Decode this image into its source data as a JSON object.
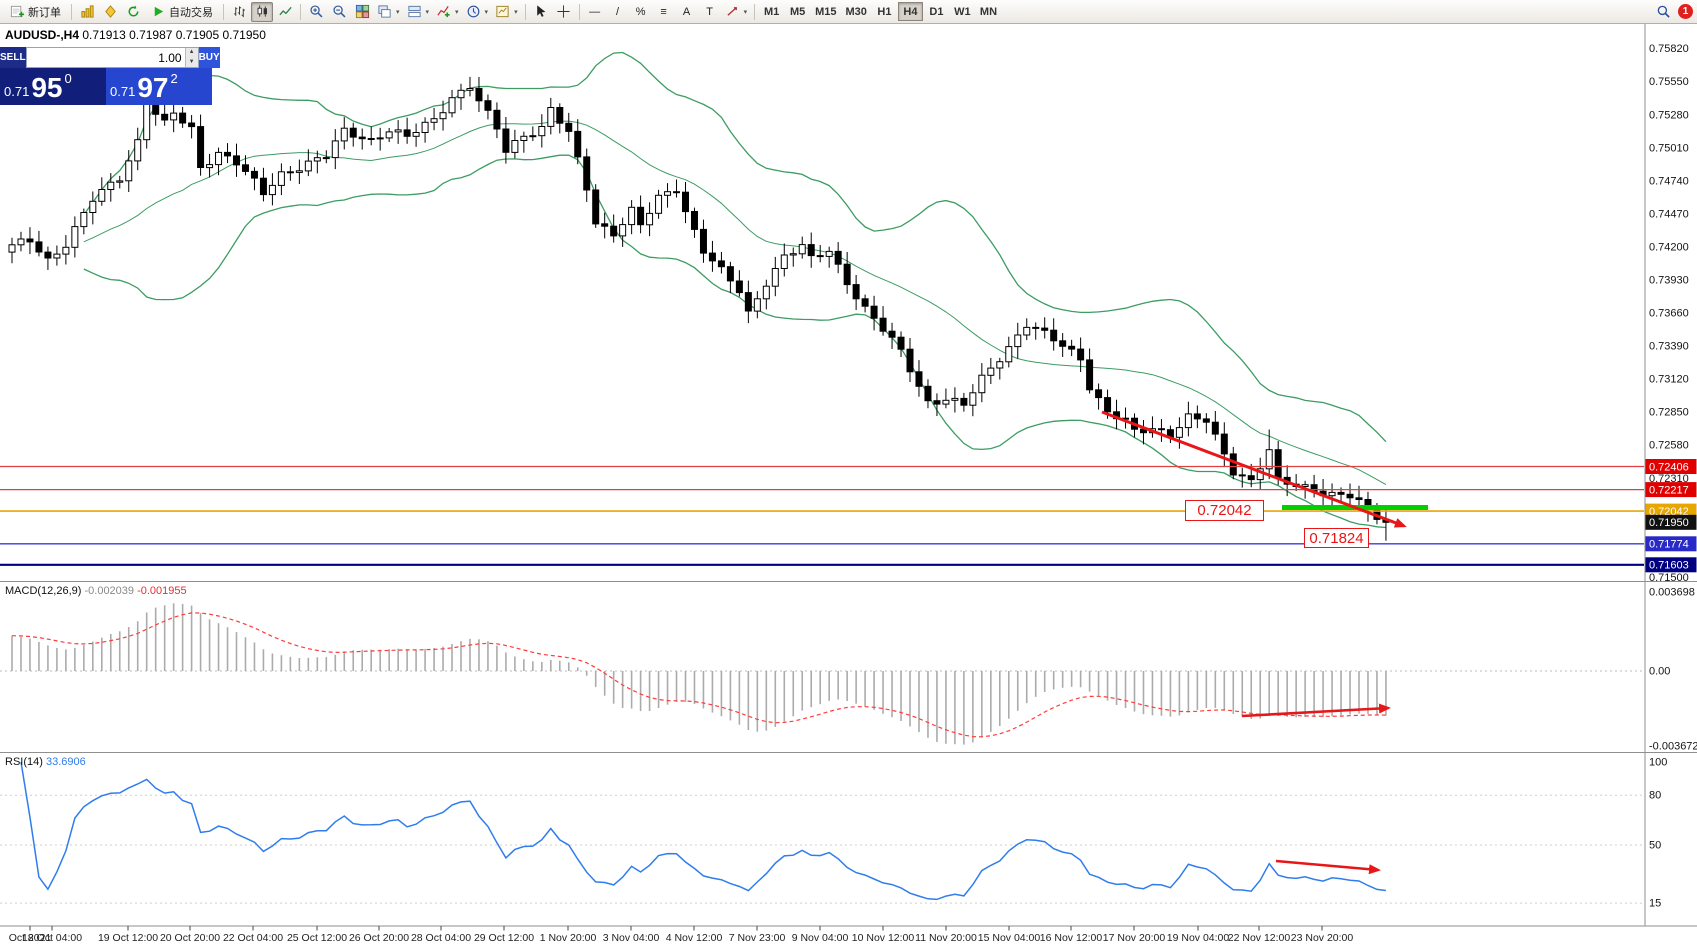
{
  "toolbar": {
    "new_order_label": "新订单",
    "auto_trading_label": "自动交易",
    "timeframes": [
      "M1",
      "M5",
      "M15",
      "M30",
      "H1",
      "H4",
      "D1",
      "W1",
      "MN"
    ],
    "active_timeframe": "H4",
    "draw_tools": [
      {
        "name": "horizontal-line-tool",
        "glyph": "—"
      },
      {
        "name": "trendline-tool",
        "glyph": "/"
      },
      {
        "name": "channel-tool",
        "glyph": "%"
      },
      {
        "name": "fibonacci-tool",
        "glyph": "≡"
      },
      {
        "name": "text-tool",
        "glyph": "A"
      },
      {
        "name": "label-tool",
        "glyph": "T"
      }
    ],
    "notification_count": "1"
  },
  "chart_header": {
    "symbol": "AUDUSD-,H4",
    "ohlc_text": "0.71913 0.71987 0.71905 0.71950"
  },
  "trade_panel": {
    "sell_label": "SELL",
    "buy_label": "BUY",
    "volume": "1.00",
    "sell_price": {
      "small": "0.71",
      "big": "95",
      "sup": "0"
    },
    "buy_price": {
      "small": "0.71",
      "big": "97",
      "sup": "2"
    }
  },
  "price_axis": {
    "gridline_labels": [
      "0.75820",
      "0.75550",
      "0.75280",
      "0.75010",
      "0.74740",
      "0.74470",
      "0.74200",
      "0.73930",
      "0.73660",
      "0.73390",
      "0.73120",
      "0.72850",
      "0.72580",
      "0.72310",
      "0.71500"
    ],
    "badges": [
      {
        "value": "0.72406",
        "price": 0.72406,
        "color": "#e00000"
      },
      {
        "value": "0.72217",
        "price": 0.72217,
        "color": "#e00000"
      },
      {
        "value": "0.72042",
        "price": 0.72042,
        "color": "#e8a600"
      },
      {
        "value": "0.71950",
        "price": 0.7195,
        "color": "#111111"
      },
      {
        "value": "0.71774",
        "price": 0.71774,
        "color": "#2929c8"
      },
      {
        "value": "0.71603",
        "price": 0.71603,
        "color": "#000080"
      }
    ]
  },
  "macd_panel": {
    "name": "MACD(12,26,9)",
    "main_value": "-0.002039",
    "signal_value": "-0.001955",
    "scale_top": "0.003698",
    "scale_zero": "0.00",
    "scale_bottom": "-0.003672"
  },
  "rsi_panel": {
    "name": "RSI(14)",
    "value": "33.6906",
    "scale": [
      "100",
      "80",
      "50",
      "15"
    ]
  },
  "annotations": {
    "level_label": "0.72042",
    "target_label": "0.71824"
  },
  "time_axis": {
    "labels": [
      "Oct 2021",
      "18 Oct 04:00",
      "19 Oct 12:00",
      "20 Oct 20:00",
      "22 Oct 04:00",
      "25 Oct 12:00",
      "26 Oct 20:00",
      "28 Oct 04:00",
      "29 Oct 12:00",
      "1 Nov 20:00",
      "3 Nov 04:00",
      "4 Nov 12:00",
      "7 Nov 23:00",
      "9 Nov 04:00",
      "10 Nov 12:00",
      "11 Nov 20:00",
      "15 Nov 04:00",
      "16 Nov 12:00",
      "17 Nov 20:00",
      "19 Nov 04:00",
      "22 Nov 12:00",
      "23 Nov 20:00"
    ]
  },
  "chart_data": {
    "type": "candlestick",
    "symbol": "AUDUSD",
    "timeframe": "H4",
    "current": {
      "open": 0.71913,
      "high": 0.71987,
      "low": 0.71905,
      "close": 0.7195
    },
    "y_axis_range": [
      0.715,
      0.7582
    ],
    "horizontal_levels": [
      {
        "price": 0.72406,
        "color": "#e04040",
        "width": 1.3
      },
      {
        "price": 0.72217,
        "color": "#e04040",
        "width": 1.3
      },
      {
        "price": 0.72042,
        "color": "#e8a600",
        "width": 1.6
      },
      {
        "price": 0.71774,
        "color": "#3b3bdd",
        "width": 1.3
      },
      {
        "price": 0.71603,
        "color": "#000080",
        "width": 2.2
      }
    ],
    "highlight_segment": {
      "price": 0.72075,
      "color": "#00d000"
    },
    "price_keypoints": [
      [
        0,
        0.742
      ],
      [
        2,
        0.7425
      ],
      [
        4,
        0.741
      ],
      [
        6,
        0.7423
      ],
      [
        9,
        0.7458
      ],
      [
        12,
        0.7477
      ],
      [
        14,
        0.7507
      ],
      [
        15,
        0.7539
      ],
      [
        17,
        0.752
      ],
      [
        18,
        0.7528
      ],
      [
        20,
        0.7516
      ],
      [
        21,
        0.7485
      ],
      [
        23,
        0.7498
      ],
      [
        25,
        0.7489
      ],
      [
        27,
        0.7472
      ],
      [
        28,
        0.7463
      ],
      [
        30,
        0.748
      ],
      [
        33,
        0.7489
      ],
      [
        35,
        0.7494
      ],
      [
        37,
        0.7514
      ],
      [
        40,
        0.7508
      ],
      [
        42,
        0.7516
      ],
      [
        44,
        0.7509
      ],
      [
        47,
        0.7524
      ],
      [
        49,
        0.7543
      ],
      [
        51,
        0.7552
      ],
      [
        52,
        0.7539
      ],
      [
        54,
        0.7516
      ],
      [
        55,
        0.7498
      ],
      [
        57,
        0.7512
      ],
      [
        59,
        0.7518
      ],
      [
        60,
        0.7533
      ],
      [
        62,
        0.7512
      ],
      [
        64,
        0.7468
      ],
      [
        65,
        0.744
      ],
      [
        67,
        0.7432
      ],
      [
        69,
        0.745
      ],
      [
        70,
        0.7437
      ],
      [
        72,
        0.7459
      ],
      [
        74,
        0.7468
      ],
      [
        75,
        0.745
      ],
      [
        77,
        0.7418
      ],
      [
        79,
        0.74
      ],
      [
        81,
        0.7383
      ],
      [
        82,
        0.7365
      ],
      [
        84,
        0.7392
      ],
      [
        86,
        0.7413
      ],
      [
        88,
        0.742
      ],
      [
        89,
        0.7409
      ],
      [
        91,
        0.7417
      ],
      [
        93,
        0.7392
      ],
      [
        95,
        0.737
      ],
      [
        97,
        0.7352
      ],
      [
        99,
        0.7334
      ],
      [
        101,
        0.7307
      ],
      [
        102,
        0.7294
      ],
      [
        104,
        0.7296
      ],
      [
        106,
        0.729
      ],
      [
        108,
        0.7312
      ],
      [
        110,
        0.733
      ],
      [
        112,
        0.7348
      ],
      [
        113,
        0.7357
      ],
      [
        115,
        0.7348
      ],
      [
        117,
        0.7339
      ],
      [
        119,
        0.733
      ],
      [
        120,
        0.7307
      ],
      [
        122,
        0.7285
      ],
      [
        124,
        0.7277
      ],
      [
        125,
        0.7268
      ],
      [
        127,
        0.7272
      ],
      [
        129,
        0.7268
      ],
      [
        131,
        0.7281
      ],
      [
        133,
        0.7277
      ],
      [
        135,
        0.725
      ],
      [
        136,
        0.7237
      ],
      [
        138,
        0.723
      ],
      [
        140,
        0.7254
      ],
      [
        141,
        0.7228
      ],
      [
        143,
        0.7224
      ],
      [
        145,
        0.7222
      ],
      [
        147,
        0.7219
      ],
      [
        149,
        0.7217
      ],
      [
        150,
        0.7211
      ],
      [
        151,
        0.7202
      ],
      [
        153,
        0.7195
      ]
    ],
    "indicators": {
      "bollinger_bands": {
        "period": 20,
        "deviation": 2,
        "color": "#3c9c62"
      },
      "macd": {
        "fast": 12,
        "slow": 26,
        "signal": 9,
        "main": -0.002039,
        "signal_value": -0.001955
      },
      "rsi": {
        "period": 14,
        "value": 33.6906
      }
    }
  }
}
